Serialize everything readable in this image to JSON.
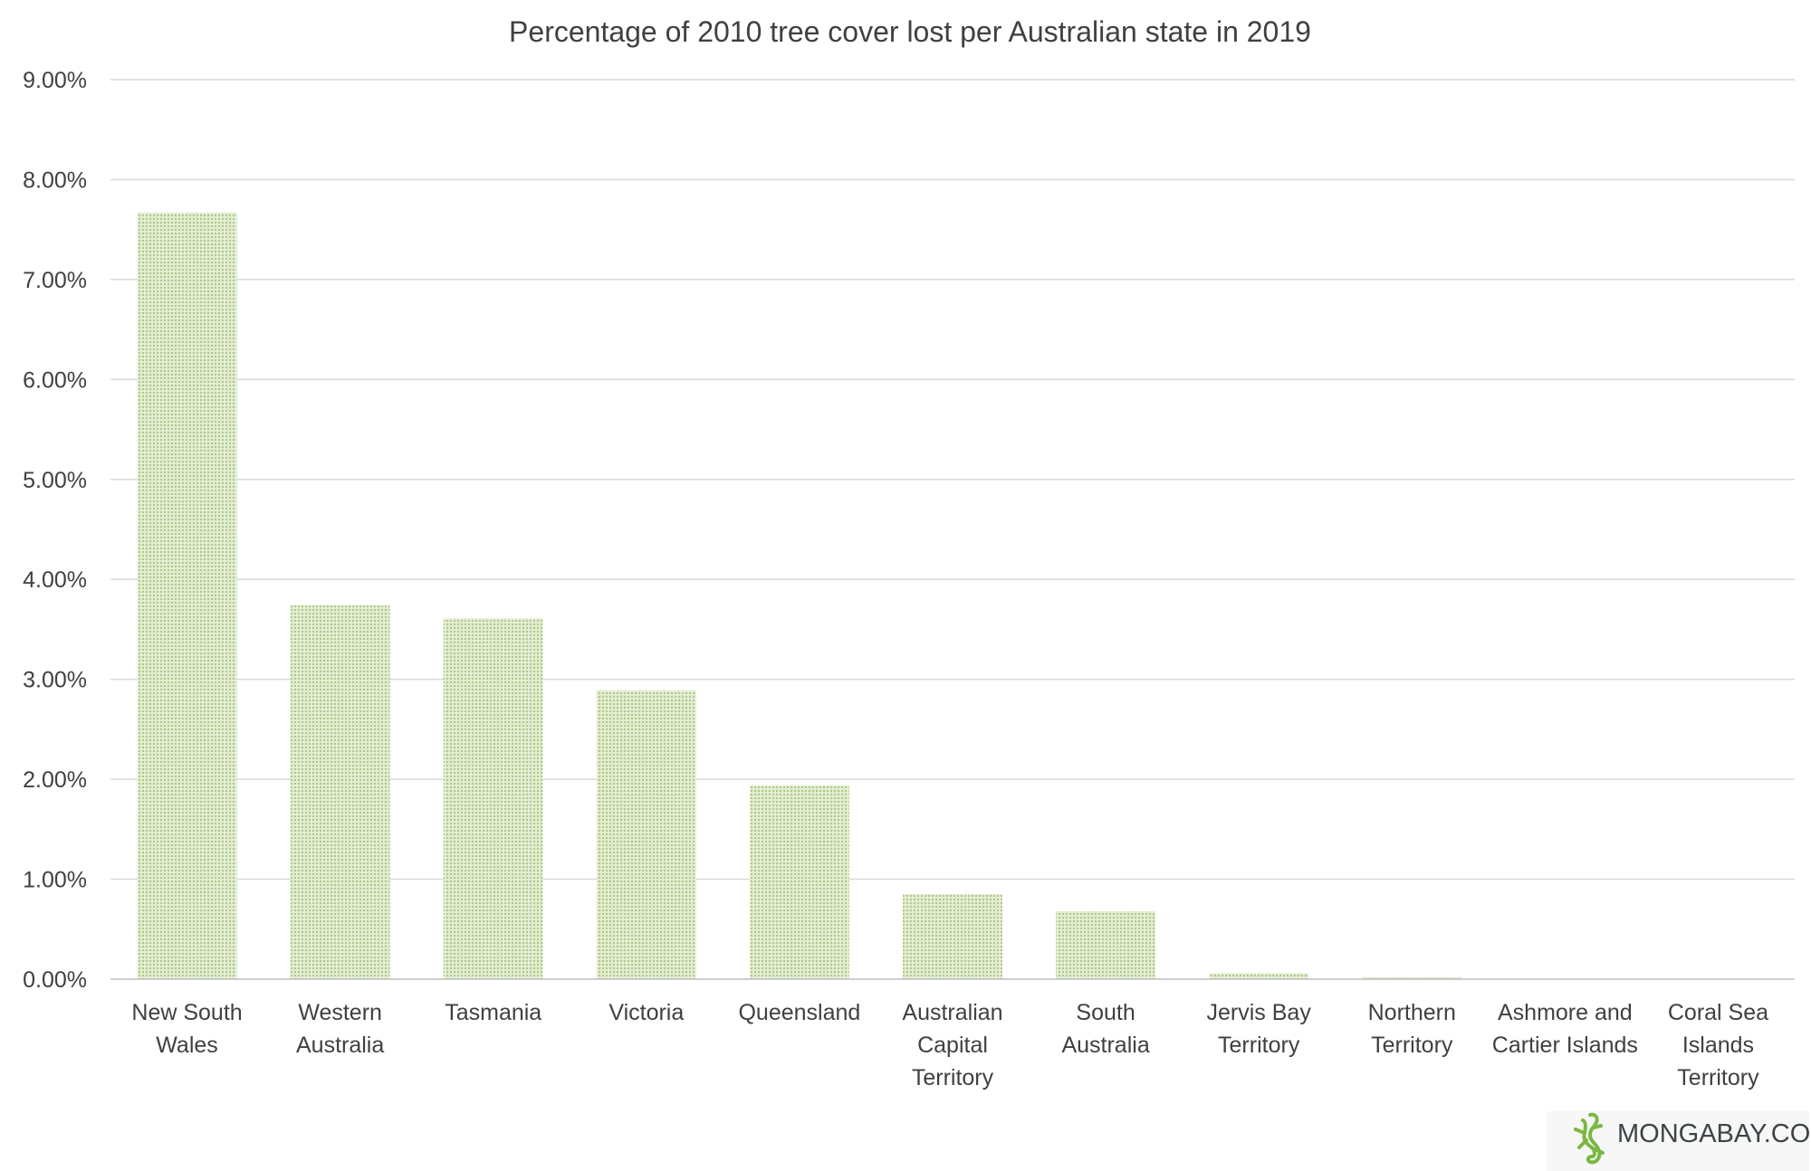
{
  "chart_data": {
    "type": "bar",
    "title": "Percentage of 2010 tree cover lost per Australian state in 2019",
    "xlabel": "",
    "ylabel": "",
    "ylim": [
      0,
      0.09
    ],
    "ytick_values": [
      0,
      0.01,
      0.02,
      0.03,
      0.04,
      0.05,
      0.06,
      0.07,
      0.08,
      0.09
    ],
    "ytick_labels": [
      "0.00%",
      "1.00%",
      "2.00%",
      "3.00%",
      "4.00%",
      "5.00%",
      "6.00%",
      "7.00%",
      "8.00%",
      "9.00%"
    ],
    "categories": [
      [
        "New South",
        "Wales"
      ],
      [
        "Western",
        "Australia"
      ],
      [
        "Tasmania"
      ],
      [
        "Victoria"
      ],
      [
        "Queensland"
      ],
      [
        "Australian",
        "Capital",
        "Territory"
      ],
      [
        "South",
        "Australia"
      ],
      [
        "Jervis Bay",
        "Territory"
      ],
      [
        "Northern",
        "Territory"
      ],
      [
        "Ashmore and",
        "Cartier Islands"
      ],
      [
        "Coral Sea",
        "Islands",
        "Territory"
      ]
    ],
    "values": [
      0.0767,
      0.0374,
      0.0361,
      0.0289,
      0.0194,
      0.0085,
      0.0068,
      0.0006,
      0.0002,
      0.0,
      0.0
    ],
    "grid": true,
    "legend": "none",
    "bar_color": "#a9c47f",
    "bar_bg_color": "#e3edd2"
  },
  "watermark": {
    "text": "MONGABAY.COM",
    "icon": "gecko-icon",
    "color": "#7bb842"
  }
}
